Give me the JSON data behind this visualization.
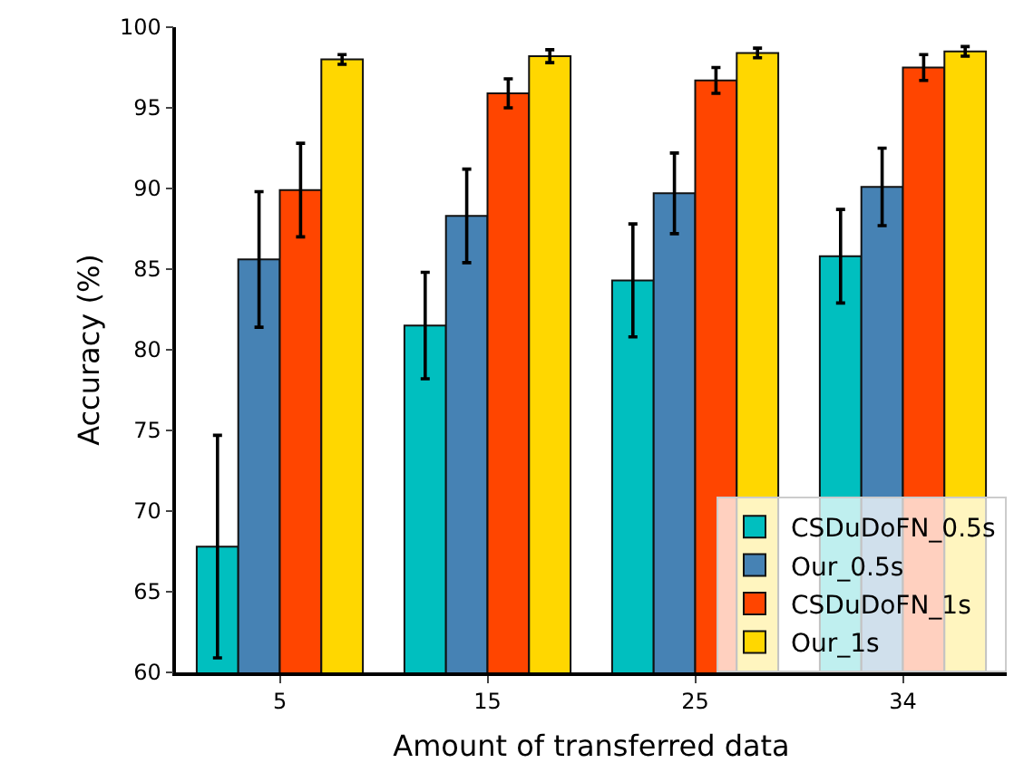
{
  "chart_data": {
    "type": "bar",
    "xlabel": "Amount of transferred data",
    "ylabel": "Accuracy (%)",
    "categories": [
      "5",
      "15",
      "25",
      "34"
    ],
    "series": [
      {
        "name": "CSDuDoFN_0.5s",
        "color": "#00bfbf",
        "values": [
          67.8,
          81.5,
          84.3,
          85.8
        ],
        "errors": [
          6.9,
          3.3,
          3.5,
          2.9
        ]
      },
      {
        "name": "Our_0.5s",
        "color": "#4682b4",
        "values": [
          85.6,
          88.3,
          89.7,
          90.1
        ],
        "errors": [
          4.2,
          2.9,
          2.5,
          2.4
        ]
      },
      {
        "name": "CSDuDoFN_1s",
        "color": "#ff4500",
        "values": [
          89.9,
          95.9,
          96.7,
          97.5
        ],
        "errors": [
          2.9,
          0.9,
          0.8,
          0.8
        ]
      },
      {
        "name": "Our_1s",
        "color": "#ffd700",
        "values": [
          98.0,
          98.2,
          98.4,
          98.5
        ],
        "errors": [
          0.3,
          0.4,
          0.3,
          0.3
        ]
      }
    ],
    "ylim": [
      60,
      100
    ],
    "yticks": [
      60,
      65,
      70,
      75,
      80,
      85,
      90,
      95,
      100
    ],
    "grid": false,
    "legend": "bottom right"
  }
}
